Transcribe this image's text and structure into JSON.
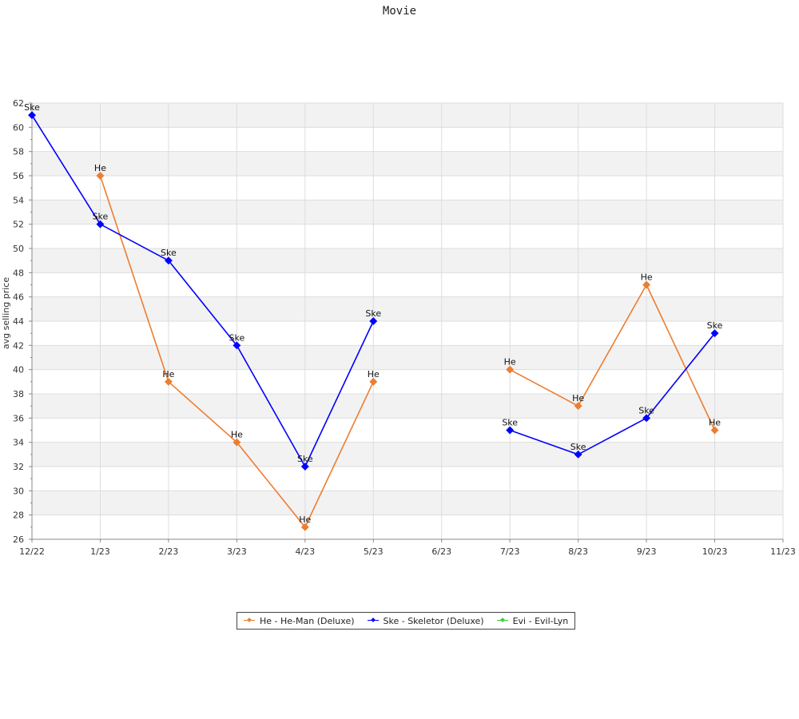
{
  "chart_data": {
    "type": "line",
    "title": "Movie",
    "ylabel": "avg selling price",
    "xlabel": "",
    "x": [
      "12/22",
      "1/23",
      "2/23",
      "3/23",
      "4/23",
      "5/23",
      "6/23",
      "7/23",
      "8/23",
      "9/23",
      "10/23",
      "11/23"
    ],
    "ylim": [
      26,
      62
    ],
    "yticks": [
      26,
      28,
      30,
      32,
      34,
      36,
      38,
      40,
      42,
      44,
      46,
      48,
      50,
      52,
      54,
      56,
      58,
      60,
      62
    ],
    "grid": true,
    "legend_position": "bottom",
    "series": [
      {
        "name": "He - He-Man (Deluxe)",
        "point_label": "He",
        "color": "#ed7d31",
        "values": [
          null,
          56,
          39,
          34,
          27,
          39,
          null,
          40,
          37,
          47,
          35,
          null
        ]
      },
      {
        "name": "Ske - Skeletor (Deluxe)",
        "point_label": "Ske",
        "color": "#0000ff",
        "values": [
          61,
          52,
          49,
          42,
          32,
          44,
          null,
          35,
          33,
          36,
          43,
          null
        ]
      },
      {
        "name": "Evi - Evil-Lyn",
        "point_label": "Evi",
        "color": "#33cc33",
        "values": [
          null,
          null,
          null,
          null,
          null,
          null,
          null,
          null,
          null,
          null,
          null,
          null
        ]
      }
    ]
  }
}
